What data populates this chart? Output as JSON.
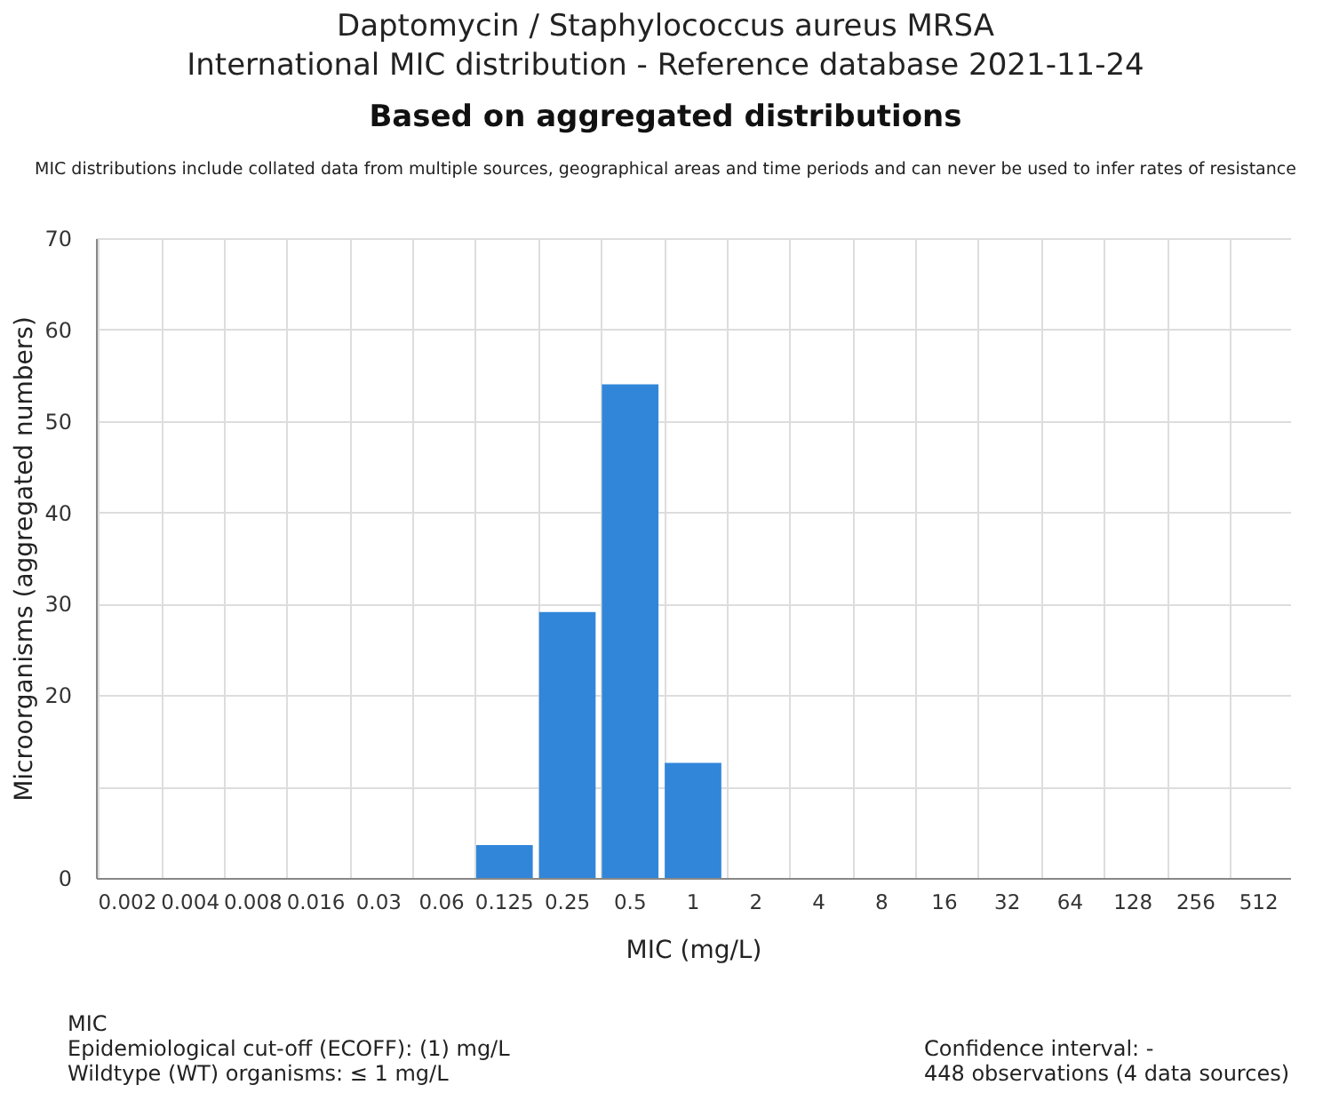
{
  "chart_data": {
    "type": "bar",
    "title": "Daptomycin / Staphylococcus aureus MRSA\nInternational MIC distribution - Reference database 2021-11-24",
    "subtitle": "Based on aggregated distributions",
    "xlabel": "MIC (mg/L)",
    "ylabel": "Microorganisms (aggregated numbers)",
    "categories": [
      "0.002",
      "0.004",
      "0.008",
      "0.016",
      "0.03",
      "0.06",
      "0.125",
      "0.25",
      "0.5",
      "1",
      "2",
      "4",
      "8",
      "16",
      "32",
      "64",
      "128",
      "256",
      "512"
    ],
    "values": [
      0,
      0,
      0,
      0,
      0,
      0,
      3.6,
      29.1,
      54,
      12.6,
      0,
      0,
      0,
      0,
      0,
      0,
      0,
      0,
      0
    ],
    "color": "#3186d9",
    "ylim": [
      0,
      70
    ],
    "yticks": [
      0,
      {
        "value": 10,
        "label": null
      },
      20,
      30,
      40,
      50,
      60,
      70
    ],
    "grid": true,
    "annotations": [
      "MIC distributions include collated data from multiple sources, geographical areas and time periods and can never be used to infer rates of resistance",
      "MIC\nEpidemiological cut-off (ECOFF): (1) mg/L\nWildtype (WT) organisms: ≤ 1 mg/L",
      "Confidence interval: -\n448 observations (4 data sources)"
    ]
  }
}
